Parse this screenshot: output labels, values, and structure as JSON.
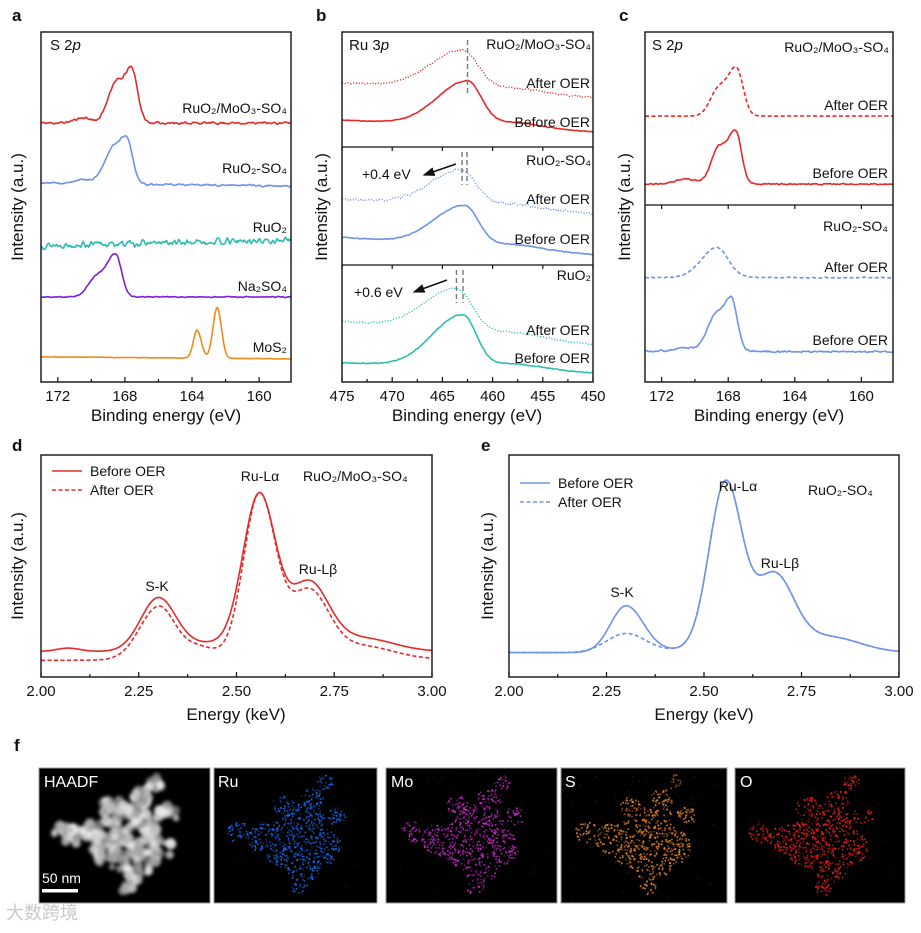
{
  "figure": {
    "panel_f": "f",
    "watermark": "大数跨境"
  },
  "chart_data": [
    {
      "panel": "a",
      "type": "line",
      "title_prefix": "S 2",
      "title_orbital": "p",
      "xlabel": "Binding energy (eV)",
      "ylabel": "Intensity (a.u.)",
      "xlim": [
        173,
        158.1
      ],
      "ylim": [
        0,
        10
      ],
      "grid": false,
      "xticks": [
        172,
        168,
        164,
        160
      ],
      "xticklabels": [
        "172",
        "168",
        "164",
        "160"
      ],
      "minor_step": 2,
      "subplots": [
        {
          "series": [
            {
              "name": "RuO₂/MoO₃-SO₄",
              "color": "#e52a2a",
              "style": "solid",
              "baseline": [
                7.4,
                7.4
              ],
              "noise": 0.05,
              "peaks": [
                [
                  167.6,
                  1.55,
                  0.45,
                  0.35
                ],
                [
                  168.6,
                  1.05,
                  0.45,
                  0.4
                ],
                [
                  170.5,
                  0.15,
                  0.5,
                  0.5
                ]
              ]
            },
            {
              "name": "RuO₂-SO₄",
              "color": "#6f93e8",
              "style": "solid",
              "baseline": [
                5.69,
                5.6
              ],
              "noise": 0.04,
              "peaks": [
                [
                  167.9,
                  1.3,
                  0.45,
                  0.35
                ],
                [
                  168.8,
                  0.85,
                  0.5,
                  0.4
                ],
                [
                  170.5,
                  0.12,
                  0.5,
                  0.5
                ]
              ]
            },
            {
              "name": "RuO₂",
              "color": "#2dbdb1",
              "style": "solid",
              "baseline": [
                3.9,
                4.05
              ],
              "noise": 0.12,
              "peaks": []
            },
            {
              "name": "Na₂SO₄",
              "color": "#7b1fd8",
              "style": "solid",
              "baseline": [
                2.43,
                2.43
              ],
              "noise": 0.02,
              "peaks": [
                [
                  168.55,
                  1.2,
                  0.5,
                  0.35
                ],
                [
                  169.7,
                  0.55,
                  0.5,
                  0.5
                ]
              ]
            },
            {
              "name": "MoS₂",
              "color": "#f08a1c",
              "style": "solid",
              "baseline": [
                0.72,
                0.66
              ],
              "noise": 0.01,
              "peaks": [
                [
                  162.5,
                  1.45,
                  0.25,
                  0.25
                ],
                [
                  163.7,
                  0.8,
                  0.22,
                  0.25
                ]
              ]
            }
          ]
        }
      ]
    },
    {
      "panel": "b",
      "type": "line",
      "title_prefix": "Ru 3",
      "title_orbital": "p",
      "xlabel": "Binding energy (eV)",
      "ylabel": "Intensity (a.u.)",
      "xlim": [
        475,
        450
      ],
      "ylim": [
        0,
        10
      ],
      "grid": false,
      "xticks": [
        475,
        470,
        465,
        460,
        455,
        450
      ],
      "xticklabels": [
        "475",
        "470",
        "465",
        "460",
        "455",
        "450"
      ],
      "minor_step": 2.5,
      "subplots": [
        {
          "label": "RuO₂/MoO₃-SO₄",
          "peak_markers": [
            462.5
          ],
          "shift_label": null,
          "series": [
            {
              "name": "After OER",
              "color": "#e52a2a",
              "style": "dotted",
              "baseline": [
                5.6,
                4.3
              ],
              "noise": 0.12,
              "peaks": [
                [
                  463,
                  3.4,
                  3.2,
                  1.6
                ],
                [
                  458,
                  0.4,
                  2,
                  3
                ]
              ]
            },
            {
              "name": "Before OER",
              "color": "#e52a2a",
              "style": "solid",
              "baseline": [
                2.35,
                1.3
              ],
              "noise": 0.05,
              "peaks": [
                [
                  462.5,
                  3.9,
                  3.0,
                  1.4
                ],
                [
                  458,
                  0.5,
                  2,
                  3
                ]
              ]
            }
          ]
        },
        {
          "label": "RuO₂-SO₄",
          "peak_markers": [
            463.05,
            462.55
          ],
          "shift_label": "+0.4 eV",
          "series": [
            {
              "name": "After OER",
              "color": "#6f93e8",
              "style": "dotted",
              "baseline": [
                5.6,
                4.35
              ],
              "noise": 0.15,
              "peaks": [
                [
                  463.2,
                  3.0,
                  3.0,
                  1.6
                ],
                [
                  458,
                  0.4,
                  2,
                  3
                ]
              ]
            },
            {
              "name": "Before OER",
              "color": "#6f93e8",
              "style": "solid",
              "baseline": [
                2.35,
                0.87
              ],
              "noise": 0.05,
              "peaks": [
                [
                  462.8,
                  3.4,
                  3.0,
                  1.4
                ],
                [
                  458,
                  0.4,
                  2,
                  3
                ]
              ]
            }
          ]
        },
        {
          "label": "RuO₂",
          "peak_markers": [
            463.6,
            462.95
          ],
          "shift_label": "+0.6 eV",
          "series": [
            {
              "name": "After OER",
              "color": "#2dbdb1",
              "style": "dotted",
              "baseline": [
                5.2,
                3.2
              ],
              "noise": 0.08,
              "peaks": [
                [
                  463.6,
                  3.7,
                  3.2,
                  1.6
                ],
                [
                  458,
                  0.4,
                  2,
                  3
                ]
              ]
            },
            {
              "name": "Before OER",
              "color": "#2dbdb1",
              "style": "solid",
              "baseline": [
                1.65,
                0.78
              ],
              "noise": 0.05,
              "peaks": [
                [
                  463,
                  4.5,
                  3.0,
                  1.4
                ],
                [
                  458,
                  0.5,
                  2,
                  3
                ]
              ]
            }
          ]
        }
      ]
    },
    {
      "panel": "c",
      "type": "line",
      "title_prefix": "S 2",
      "title_orbital": "p",
      "xlabel": "Binding energy (eV)",
      "ylabel": "Intensity (a.u.)",
      "xlim": [
        173,
        158.1
      ],
      "ylim": [
        0,
        10
      ],
      "grid": false,
      "xticks": [
        172,
        168,
        164,
        160
      ],
      "xticklabels": [
        "172",
        "168",
        "164",
        "160"
      ],
      "minor_step": 2,
      "subplots": [
        {
          "label": "RuO₂/MoO₃-SO₄",
          "series": [
            {
              "name": "After OER",
              "color": "#e52a2a",
              "style": "dashed",
              "baseline": [
                5.14,
                5.14
              ],
              "noise": 0.01,
              "peaks": [
                [
                  167.5,
                  2.7,
                  0.5,
                  0.4
                ],
                [
                  168.6,
                  1.5,
                  0.5,
                  0.5
                ]
              ]
            },
            {
              "name": "Before OER",
              "color": "#e52a2a",
              "style": "solid",
              "baseline": [
                1.21,
                1.21
              ],
              "noise": 0.06,
              "peaks": [
                [
                  167.55,
                  3.0,
                  0.45,
                  0.35
                ],
                [
                  168.6,
                  2.0,
                  0.45,
                  0.45
                ],
                [
                  170.5,
                  0.3,
                  0.6,
                  0.6
                ]
              ]
            }
          ]
        },
        {
          "label": "RuO₂-SO₄",
          "series": [
            {
              "name": "After OER",
              "color": "#6f93e8",
              "style": "dashed",
              "baseline": [
                5.9,
                5.9
              ],
              "noise": 0.04,
              "peaks": [
                [
                  168.7,
                  1.7,
                  0.9,
                  0.7
                ]
              ]
            },
            {
              "name": "Before OER",
              "color": "#6f93e8",
              "style": "solid",
              "baseline": [
                1.75,
                1.7
              ],
              "noise": 0.07,
              "peaks": [
                [
                  167.8,
                  2.9,
                  0.45,
                  0.35
                ],
                [
                  168.8,
                  1.9,
                  0.5,
                  0.45
                ],
                [
                  170.5,
                  0.2,
                  0.6,
                  0.6
                ]
              ]
            }
          ]
        }
      ]
    },
    {
      "panel": "d",
      "type": "line",
      "sample": "RuO₂/MoO₃-SO₄",
      "xlabel": "Energy (keV)",
      "ylabel": "Intensity (a.u.)",
      "xlim": [
        2.0,
        3.0
      ],
      "ylim": [
        0,
        10
      ],
      "grid": false,
      "legend": "top-left",
      "xticks": [
        2.0,
        2.25,
        2.5,
        2.75,
        3.0
      ],
      "xticklabels": [
        "2.00",
        "2.25",
        "2.50",
        "2.75",
        "3.00"
      ],
      "minor_step": 0.125,
      "annotations": {
        "sk": "S-K",
        "la": "Ru-Lα",
        "lb": "Ru-Lβ"
      },
      "subplots": [
        {
          "series": [
            {
              "name": "Before OER",
              "color": "#e52a2a",
              "style": "solid",
              "baseline": [
                1.15,
                1.15
              ],
              "noise": 0.0,
              "peaks": [
                [
                  2.07,
                  0.15,
                  0.03,
                  0.03
                ],
                [
                  2.3,
                  2.4,
                  0.045,
                  0.045
                ],
                [
                  2.43,
                  0.35,
                  0.06,
                  0.06
                ],
                [
                  2.558,
                  7.0,
                  0.042,
                  0.042
                ],
                [
                  2.685,
                  3.0,
                  0.05,
                  0.05
                ],
                [
                  2.82,
                  0.6,
                  0.08,
                  0.08
                ]
              ]
            },
            {
              "name": "After OER",
              "color": "#e52a2a",
              "style": "dashed",
              "baseline": [
                0.75,
                0.8
              ],
              "noise": 0.0,
              "peaks": [
                [
                  2.3,
                  2.35,
                  0.048,
                  0.04
                ],
                [
                  2.4,
                  0.6,
                  0.05,
                  0.05
                ],
                [
                  2.558,
                  7.4,
                  0.04,
                  0.042
                ],
                [
                  2.685,
                  3.0,
                  0.05,
                  0.05
                ],
                [
                  2.82,
                  0.6,
                  0.08,
                  0.08
                ]
              ]
            }
          ]
        }
      ]
    },
    {
      "panel": "e",
      "type": "line",
      "sample": "RuO₂-SO₄",
      "xlabel": "Energy (keV)",
      "ylabel": "Intensity (a.u.)",
      "xlim": [
        2.0,
        3.0
      ],
      "ylim": [
        0,
        10
      ],
      "grid": false,
      "legend": "top-left",
      "xticks": [
        2.0,
        2.25,
        2.5,
        2.75,
        3.0
      ],
      "xticklabels": [
        "2.00",
        "2.25",
        "2.50",
        "2.75",
        "3.00"
      ],
      "minor_step": 0.125,
      "annotations": {
        "sk": "S-K",
        "la": "Ru-Lα",
        "lb": "Ru-Lβ"
      },
      "subplots": [
        {
          "series": [
            {
              "name": "Before OER",
              "color": "#6f93e8",
              "style": "solid",
              "baseline": [
                1.1,
                1.1
              ],
              "noise": 0.0,
              "peaks": [
                [
                  2.3,
                  2.1,
                  0.04,
                  0.045
                ],
                [
                  2.43,
                  0.1,
                  0.06,
                  0.06
                ],
                [
                  2.555,
                  7.6,
                  0.042,
                  0.042
                ],
                [
                  2.68,
                  3.4,
                  0.05,
                  0.05
                ],
                [
                  2.82,
                  0.7,
                  0.08,
                  0.08
                ]
              ]
            },
            {
              "name": "After OER",
              "color": "#6f93e8",
              "style": "dashed",
              "baseline": [
                1.1,
                1.1
              ],
              "noise": 0.0,
              "peaks": [
                [
                  2.3,
                  0.85,
                  0.05,
                  0.05
                ],
                [
                  2.43,
                  0.1,
                  0.06,
                  0.06
                ],
                [
                  2.555,
                  7.6,
                  0.042,
                  0.042
                ],
                [
                  2.68,
                  3.4,
                  0.05,
                  0.05
                ],
                [
                  2.82,
                  0.7,
                  0.08,
                  0.08
                ]
              ]
            }
          ]
        }
      ]
    }
  ],
  "eds": {
    "scale_bar": "50 nm",
    "maps": [
      {
        "label": "HAADF",
        "color": "#e8e8e8"
      },
      {
        "label": "Ru",
        "color": "#1a6cf0"
      },
      {
        "label": "Mo",
        "color": "#d42ad4"
      },
      {
        "label": "S",
        "color": "#f08a2a"
      },
      {
        "label": "O",
        "color": "#f02020"
      }
    ]
  }
}
